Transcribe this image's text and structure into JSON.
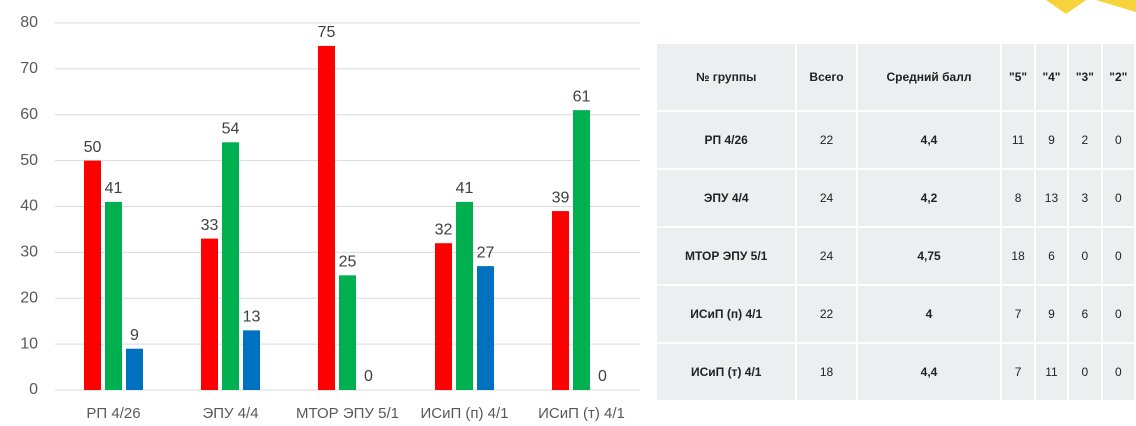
{
  "chart_data": {
    "type": "bar",
    "categories": [
      "РП 4/26",
      "ЭПУ 4/4",
      "МТОР ЭПУ 5/1",
      "ИСиП (п) 4/1",
      "ИСиП (т) 4/1"
    ],
    "series": [
      {
        "color": "#ff0000",
        "values": [
          50,
          33,
          75,
          32,
          39
        ]
      },
      {
        "color": "#00b050",
        "values": [
          41,
          54,
          25,
          41,
          61
        ]
      },
      {
        "color": "#0070c0",
        "values": [
          9,
          13,
          0,
          27,
          0
        ]
      }
    ],
    "ylim": [
      0,
      80
    ],
    "yticks": [
      0,
      10,
      20,
      30,
      40,
      50,
      60,
      70,
      80
    ],
    "grid": true
  },
  "table": {
    "header": [
      "№ группы",
      "Всего",
      "Средний балл",
      "\"5\"",
      "\"4\"",
      "\"3\"",
      "\"2\""
    ],
    "rows": [
      [
        "РП 4/26",
        "22",
        "4,4",
        "11",
        "9",
        "2",
        "0"
      ],
      [
        "ЭПУ 4/4",
        "24",
        "4,2",
        "8",
        "13",
        "3",
        "0"
      ],
      [
        "МТОР ЭПУ 5/1",
        "24",
        "4,75",
        "18",
        "6",
        "0",
        "0"
      ],
      [
        "ИСиП (п) 4/1",
        "22",
        "4",
        "7",
        "9",
        "6",
        "0"
      ],
      [
        "ИСиП (т) 4/1",
        "18",
        "4,4",
        "7",
        "11",
        "0",
        "0"
      ]
    ]
  }
}
